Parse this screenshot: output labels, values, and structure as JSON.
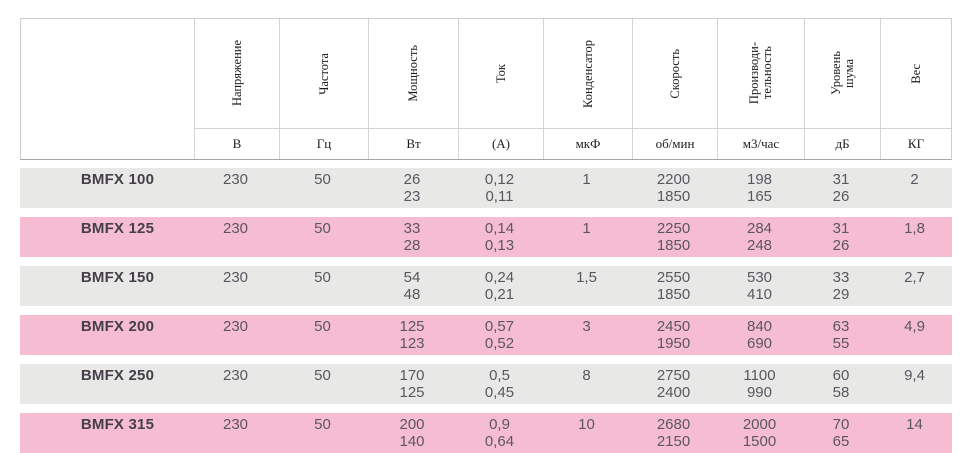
{
  "table": {
    "columns": [
      {
        "label": "Напряжение",
        "unit": "В"
      },
      {
        "label": "Частота",
        "unit": "Гц"
      },
      {
        "label": "Мощность",
        "unit": "Вт"
      },
      {
        "label": "Ток",
        "unit": "(А)"
      },
      {
        "label": "Конденсатор",
        "unit": "мкФ"
      },
      {
        "label": "Скорость",
        "unit": "об/мин"
      },
      {
        "label": "Производи-\nтельность",
        "unit": "м3/час"
      },
      {
        "label": "Уровень\nшума",
        "unit": "дБ"
      },
      {
        "label": "Вес",
        "unit": "КГ"
      }
    ],
    "rows": [
      {
        "cells": [
          "BMFX 100",
          "230",
          "50",
          "26\n23",
          "0,12\n0,11",
          "1",
          "2200\n1850",
          "198\n165",
          "31\n26",
          "2"
        ]
      },
      {
        "cells": [
          "BMFX 125",
          "230",
          "50",
          "33\n28",
          "0,14\n0,13",
          "1",
          "2250\n1850",
          "284\n248",
          "31\n26",
          "1,8"
        ]
      },
      {
        "cells": [
          "BMFX 150",
          "230",
          "50",
          "54\n48",
          "0,24\n0,21",
          "1,5",
          "2550\n1850",
          "530\n410",
          "33\n29",
          "2,7"
        ]
      },
      {
        "cells": [
          "BMFX 200",
          "230",
          "50",
          "125\n123",
          "0,57\n0,52",
          "3",
          "2450\n1950",
          "840\n690",
          "63\n55",
          "4,9"
        ]
      },
      {
        "cells": [
          "BMFX 250",
          "230",
          "50",
          "170\n125",
          "0,5\n0,45",
          "8",
          "2750\n2400",
          "1100\n990",
          "60\n58",
          "9,4"
        ]
      },
      {
        "cells": [
          "BMFX 315",
          "230",
          "50",
          "200\n140",
          "0,9\n0,64",
          "10",
          "2680\n2150",
          "2000\n1500",
          "70\n65",
          "14"
        ]
      }
    ]
  },
  "colors": {
    "row_gray": "#e8e8e7",
    "row_pink": "#f6bdd2",
    "header_border": "#cdcdcd",
    "header_bottom_border": "#a6a6a6",
    "value_text": "#5b5660",
    "model_text": "#443f48"
  }
}
